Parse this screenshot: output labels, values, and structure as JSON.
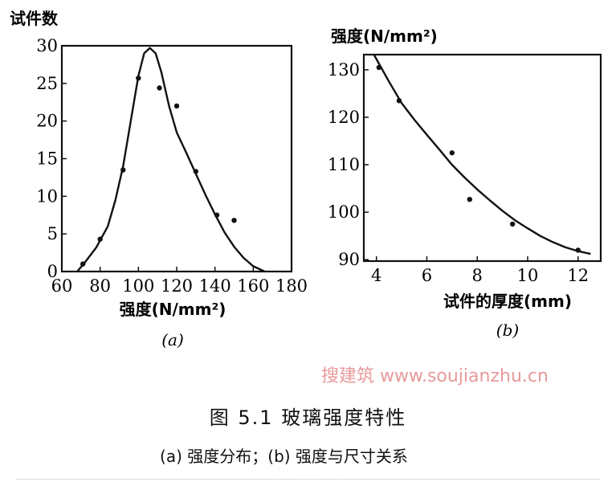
{
  "chart_data": [
    {
      "type": "scatter",
      "panel_label": "(a)",
      "ylabel": "试件数",
      "xlabel": "强度(N/mm²)",
      "xlim": [
        60,
        180
      ],
      "ylim": [
        0,
        30
      ],
      "xticks": [
        60,
        80,
        100,
        120,
        140,
        160,
        180
      ],
      "yticks": [
        0,
        5,
        10,
        15,
        20,
        25,
        30
      ],
      "grid": false,
      "points": [
        [
          71,
          1
        ],
        [
          80,
          4.3
        ],
        [
          92,
          13.5
        ],
        [
          100,
          25.7
        ],
        [
          111,
          24.4
        ],
        [
          120,
          22
        ],
        [
          130,
          13.3
        ],
        [
          141,
          7.5
        ],
        [
          150,
          6.8
        ]
      ],
      "fit_curve": [
        [
          68,
          0
        ],
        [
          72,
          1.2
        ],
        [
          78,
          3.2
        ],
        [
          84,
          6
        ],
        [
          88,
          9.5
        ],
        [
          92,
          14
        ],
        [
          96,
          20
        ],
        [
          100,
          26
        ],
        [
          103,
          29
        ],
        [
          106,
          29.7
        ],
        [
          109,
          29
        ],
        [
          112,
          26.5
        ],
        [
          116,
          22
        ],
        [
          120,
          18.5
        ],
        [
          125,
          15.8
        ],
        [
          130,
          13
        ],
        [
          135,
          10.2
        ],
        [
          140,
          7.6
        ],
        [
          145,
          5.2
        ],
        [
          150,
          3.3
        ],
        [
          155,
          1.8
        ],
        [
          160,
          0.7
        ],
        [
          166,
          0
        ]
      ]
    },
    {
      "type": "scatter",
      "panel_label": "(b)",
      "ylabel": "强度(N/mm²)",
      "xlabel": "试件的厚度(mm)",
      "xlim": [
        3.5,
        12.9
      ],
      "ylim": [
        89.7,
        133.2
      ],
      "xticks": [
        4,
        6,
        8,
        10,
        12
      ],
      "yticks": [
        90,
        100,
        110,
        120,
        130
      ],
      "grid": false,
      "points": [
        [
          4.1,
          130.5
        ],
        [
          4.9,
          123.5
        ],
        [
          7,
          112.5
        ],
        [
          7.7,
          102.7
        ],
        [
          9.4,
          97.5
        ],
        [
          12,
          92
        ]
      ],
      "fit_curve": [
        [
          3.9,
          133.2
        ],
        [
          4.5,
          127.5
        ],
        [
          5,
          123
        ],
        [
          5.5,
          119.5
        ],
        [
          6,
          116.3
        ],
        [
          6.5,
          113.2
        ],
        [
          7,
          110
        ],
        [
          7.5,
          107.3
        ],
        [
          8,
          104.8
        ],
        [
          8.5,
          102.5
        ],
        [
          9,
          100.3
        ],
        [
          9.5,
          98.3
        ],
        [
          10,
          96.6
        ],
        [
          10.5,
          95
        ],
        [
          11,
          93.7
        ],
        [
          11.5,
          92.6
        ],
        [
          12,
          91.8
        ],
        [
          12.5,
          91.2
        ]
      ]
    }
  ],
  "caption": {
    "title": "图 5.1   玻璃强度特性",
    "subtitle": "(a) 强度分布；(b) 强度与尺寸关系"
  },
  "watermark": "搜建筑 www.soujianzhu.cn"
}
